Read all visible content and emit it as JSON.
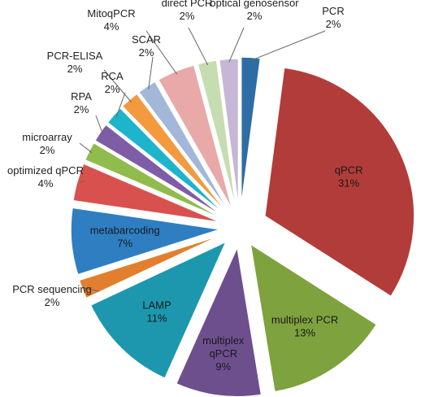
{
  "chart_data": {
    "type": "pie",
    "title": "",
    "exploded": true,
    "categories": [
      "PCR",
      "qPCR",
      "multiplex PCR",
      "multiplex qPCR",
      "LAMP",
      "PCR sequencing",
      "metabarcoding",
      "optimized qPCR",
      "microarray",
      "RPA",
      "RCA",
      "PCR-ELISA",
      "SCAR",
      "MitoqPCR",
      "direct PCR",
      "optical genosensor"
    ],
    "values": [
      2,
      31,
      13,
      9,
      11,
      2,
      7,
      4,
      2,
      2,
      2,
      2,
      2,
      4,
      2,
      2
    ],
    "labels": [
      {
        "name": "PCR",
        "pct": "2%"
      },
      {
        "name": "qPCR",
        "pct": "31%"
      },
      {
        "name": "multiplex PCR",
        "pct": "13%"
      },
      {
        "name": "multiplex\nqPCR",
        "pct": "9%"
      },
      {
        "name": "LAMP",
        "pct": "11%"
      },
      {
        "name": "PCR sequencing",
        "pct": "2%"
      },
      {
        "name": "metabarcoding",
        "pct": "7%"
      },
      {
        "name": "optimized qPCR",
        "pct": "4%"
      },
      {
        "name": "microarray",
        "pct": "2%"
      },
      {
        "name": "RPA",
        "pct": "2%"
      },
      {
        "name": "RCA",
        "pct": "2%"
      },
      {
        "name": "PCR-ELISA",
        "pct": "2%"
      },
      {
        "name": "SCAR",
        "pct": "2%"
      },
      {
        "name": "MitoqPCR",
        "pct": "4%"
      },
      {
        "name": "direct PCR",
        "pct": "2%"
      },
      {
        "name": "optical genosensor",
        "pct": "2%"
      }
    ],
    "colors": [
      "#2E6DA4",
      "#B23C3A",
      "#7EA23E",
      "#6E4F8E",
      "#1C97AE",
      "#E27F2E",
      "#2F7EC2",
      "#D9514E",
      "#8FBC4C",
      "#7E5DA7",
      "#1DB4CC",
      "#F39A3E",
      "#A3B8D8",
      "#E8A9A8",
      "#C5DDB0",
      "#C7B7D6"
    ],
    "legend": "none"
  }
}
